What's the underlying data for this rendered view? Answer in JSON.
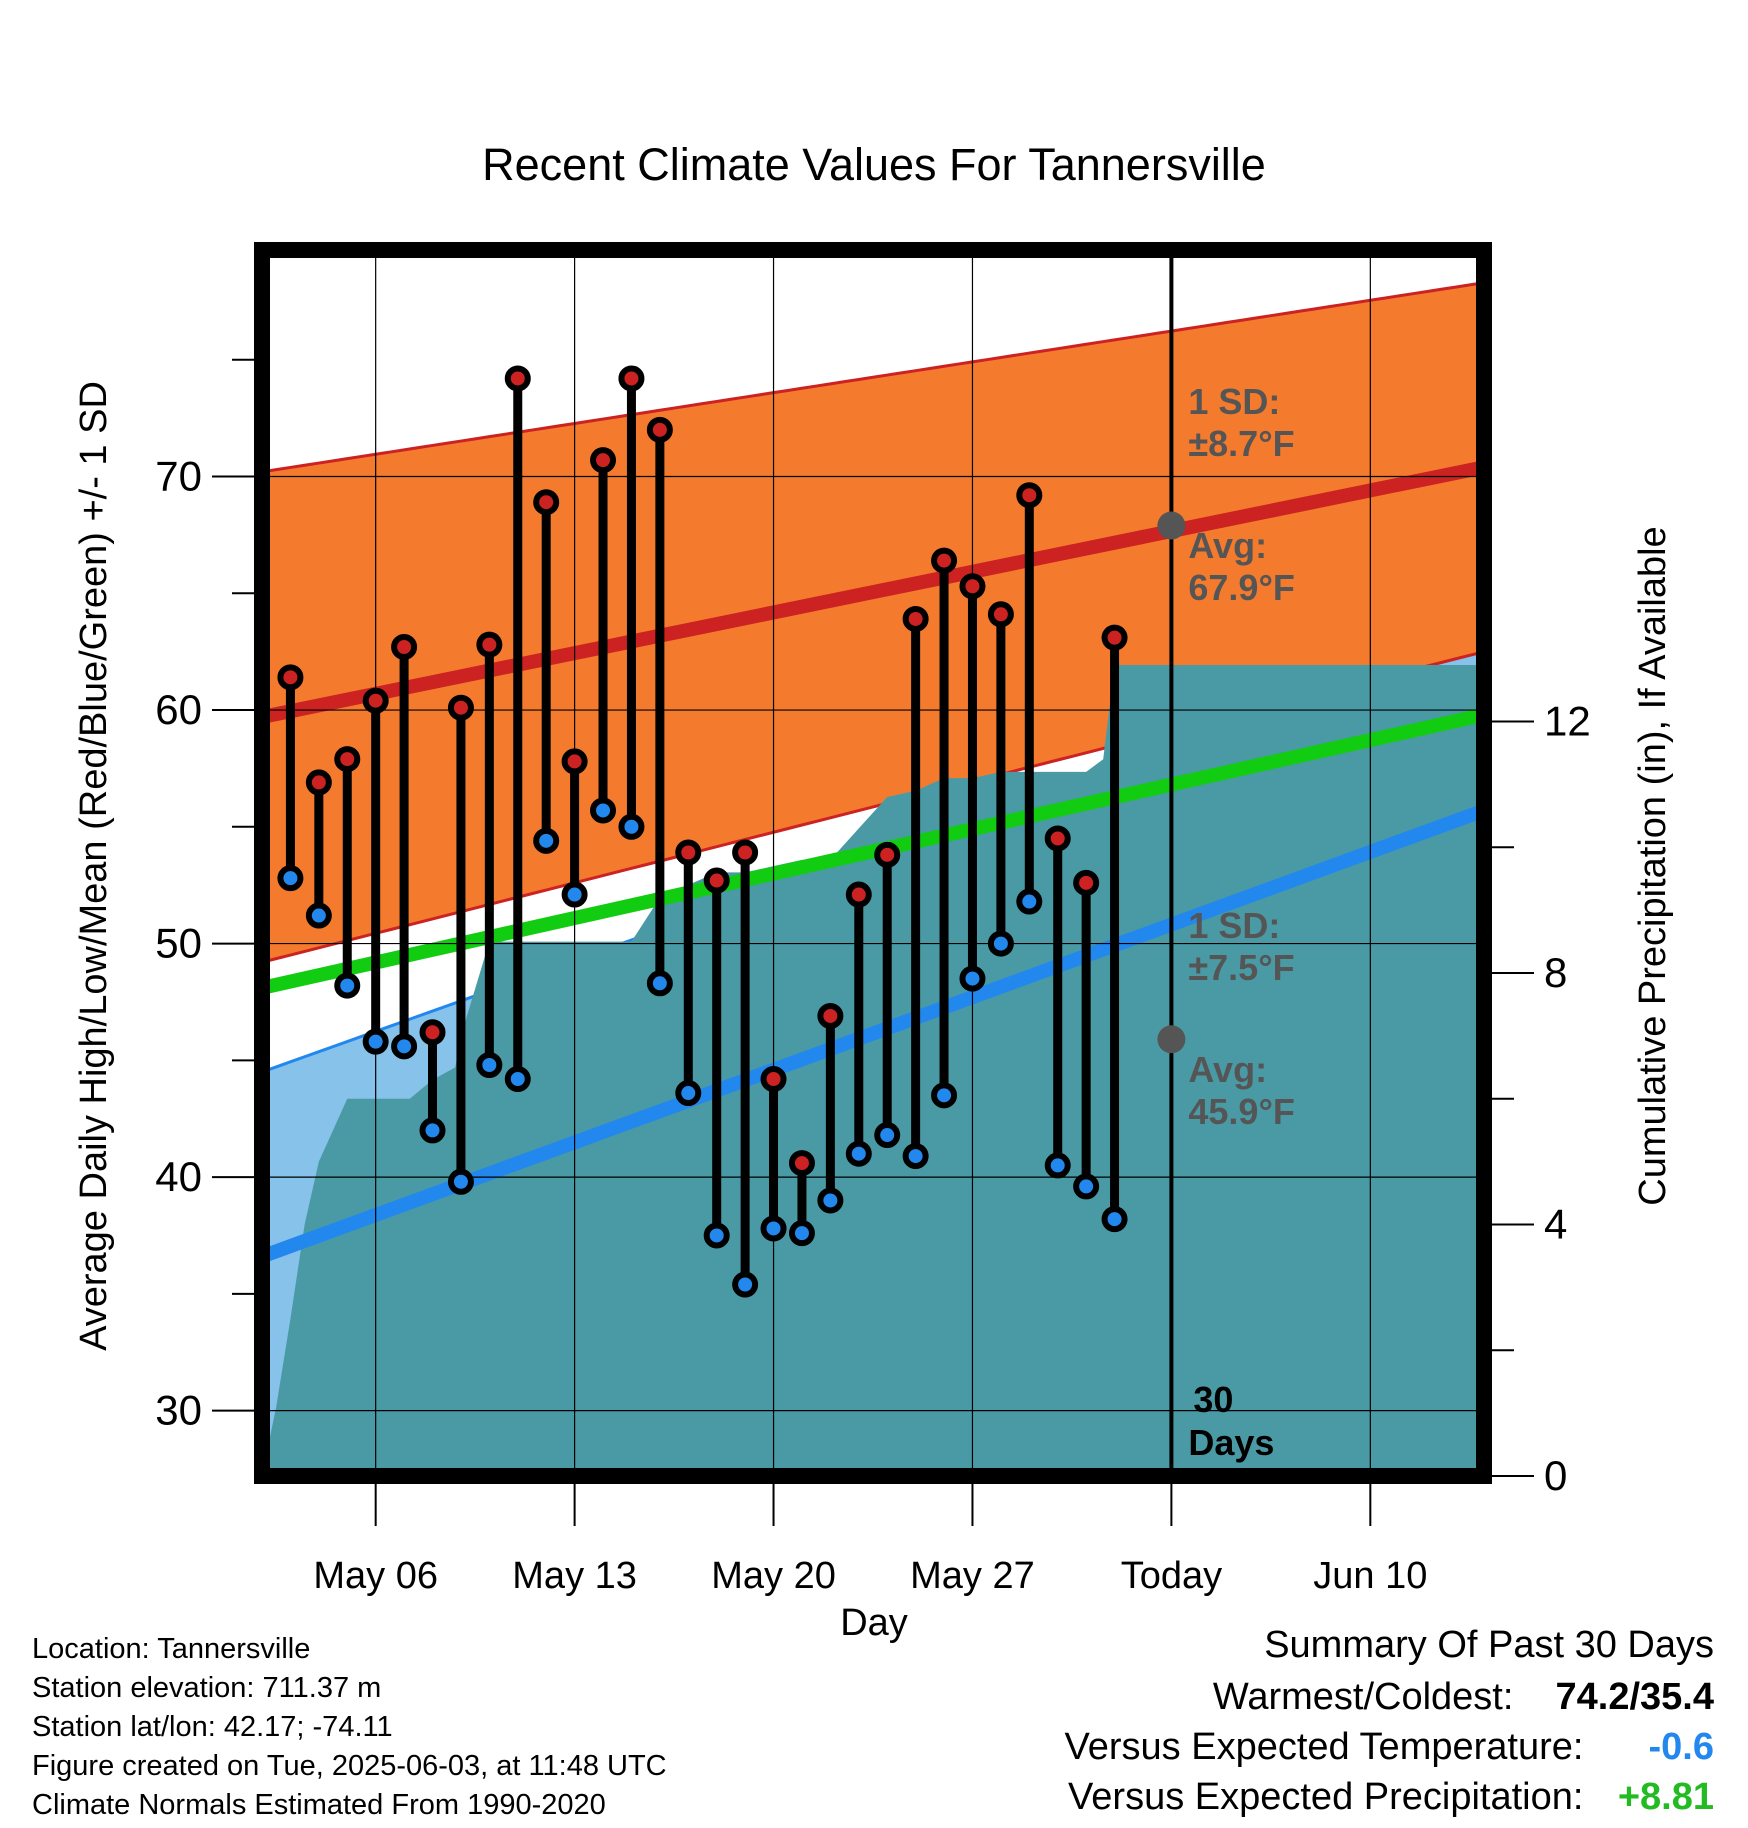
{
  "chart_data": {
    "type": "line",
    "title": "Recent Climate Values For Tannersville",
    "xlabel": "Day",
    "ylabel": "Average Daily High/Low/Mean (Red/Blue/Green) +/- 1 SD",
    "y2label": "Cumulative Precipitation (in), If Available",
    "x_day_range": [
      0,
      43
    ],
    "ylim": [
      27.2,
      79.7
    ],
    "y2lim": [
      0,
      19.5
    ],
    "x_ticks": [
      {
        "day": 4,
        "label": "May 06"
      },
      {
        "day": 11,
        "label": "May 13"
      },
      {
        "day": 18,
        "label": "May 20"
      },
      {
        "day": 25,
        "label": "May 27"
      },
      {
        "day": 32,
        "label": "Today"
      },
      {
        "day": 39,
        "label": "Jun 10"
      }
    ],
    "y_ticks": [
      30,
      40,
      50,
      60,
      70
    ],
    "y2_ticks": [
      0,
      4,
      8,
      12
    ],
    "grid": true,
    "normals": {
      "high_avg": [
        59.7,
        70.4
      ],
      "high_sd": [
        10.5,
        7.9
      ],
      "low_avg": [
        36.6,
        55.7
      ],
      "low_sd": [
        7.9,
        7.5
      ],
      "mean_avg": [
        48.1,
        59.8
      ]
    },
    "annotations": {
      "high_sd": "1 SD:",
      "high_sd_val": "±8.7°F",
      "high_avg": "Avg:",
      "high_avg_val": "67.9°F",
      "low_sd": "1 SD:",
      "low_sd_val": "±7.5°F",
      "low_avg": "Avg:",
      "low_avg_val": "45.9°F",
      "today_high_avg": 67.9,
      "today_low_avg": 45.9,
      "period_1": "30",
      "period_2": "Days"
    },
    "series": [
      {
        "name": "High",
        "color": "#cc2222",
        "values": [
          61.4,
          56.9,
          57.9,
          60.4,
          62.7,
          46.2,
          60.1,
          62.8,
          74.2,
          68.9,
          57.8,
          70.7,
          74.2,
          72.0,
          53.9,
          52.7,
          53.9,
          44.2,
          40.6,
          46.9,
          52.1,
          53.8,
          63.9,
          66.4,
          65.3,
          64.1,
          69.2,
          54.5,
          52.6,
          63.1
        ]
      },
      {
        "name": "Low",
        "color": "#2288ee",
        "values": [
          52.8,
          51.2,
          48.2,
          45.8,
          45.6,
          42.0,
          39.8,
          44.8,
          44.2,
          54.4,
          52.1,
          55.7,
          55.0,
          48.3,
          43.6,
          37.5,
          35.4,
          37.8,
          37.6,
          39.0,
          41.0,
          41.8,
          40.9,
          43.5,
          48.5,
          50.0,
          51.8,
          40.5,
          39.6,
          38.2
        ]
      }
    ],
    "precip_cumulative": {
      "days": [
        0,
        0.5,
        1,
        1.5,
        2,
        3,
        3.8,
        4,
        5,
        5.2,
        6,
        6.8,
        7,
        8,
        9,
        10,
        11,
        12,
        13,
        14,
        15,
        16,
        17,
        18,
        19,
        20,
        21,
        22,
        23,
        24,
        25,
        26,
        27,
        28,
        29,
        29.6,
        30,
        31,
        32,
        33,
        34,
        35,
        36,
        37,
        38,
        39,
        40,
        41,
        42,
        43
      ],
      "values": [
        0,
        1.1,
        2.5,
        4.0,
        5.0,
        6.0,
        6.0,
        6.0,
        6.0,
        6.0,
        6.3,
        6.5,
        7.0,
        8.5,
        8.5,
        8.5,
        8.5,
        8.5,
        8.5,
        9.2,
        9.4,
        9.6,
        9.6,
        9.7,
        9.8,
        9.8,
        10.3,
        10.8,
        10.9,
        11.1,
        11.1,
        11.2,
        11.2,
        11.2,
        11.2,
        11.4,
        12.9,
        12.9,
        12.9,
        12.9,
        12.9,
        12.9,
        12.9,
        12.9,
        12.9,
        12.9,
        12.9,
        12.9,
        12.9,
        12.9
      ]
    }
  },
  "colors": {
    "high_band": "#f47a2e",
    "high_line": "#cc2222",
    "low_band": "#86c2ea",
    "low_line": "#2288ee",
    "mean_line": "#11cc11",
    "precip": "#4a9aa5",
    "annotation": "#555555",
    "temp_delta": "#2288ee",
    "precip_delta": "#22bb22"
  },
  "footer": {
    "location": "Location: Tannersville",
    "elevation": "Station elevation: 711.37 m",
    "latlon": "Station lat/lon: 42.17; -74.11",
    "created": "Figure created on Tue, 2025-06-03, at 11:48 UTC",
    "normals": "Climate Normals Estimated From 1990-2020"
  },
  "summary": {
    "title": "Summary Of Past 30 Days",
    "warmest_label": "Warmest/Coldest:",
    "warmest_value": "74.2/35.4",
    "temp_label": "Versus Expected Temperature:",
    "temp_value": "-0.6",
    "precip_label": "Versus Expected Precipitation:",
    "precip_value": "+8.81"
  }
}
